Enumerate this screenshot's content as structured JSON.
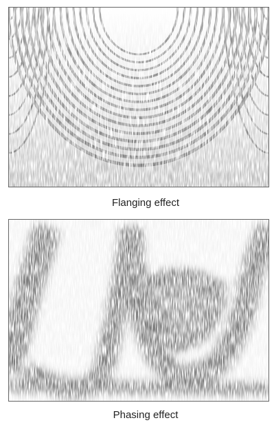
{
  "panels": [
    {
      "caption": "Flanging effect"
    },
    {
      "caption": "Phasing effect"
    }
  ]
}
